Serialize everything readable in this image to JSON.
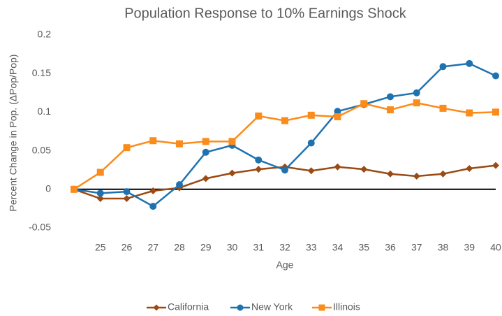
{
  "chart_data": {
    "type": "line",
    "title": "Population Response to 10% Earnings Shock",
    "x_label": "Age",
    "y_label": "Percent Change in  Pop. (ΔPop/Pop)",
    "x": [
      24,
      25,
      26,
      27,
      28,
      29,
      30,
      31,
      32,
      33,
      34,
      35,
      36,
      37,
      38,
      39,
      40
    ],
    "xlim": [
      24,
      40
    ],
    "xticks": [
      25,
      26,
      27,
      28,
      29,
      30,
      31,
      32,
      33,
      34,
      35,
      36,
      37,
      38,
      39,
      40
    ],
    "ylim": [
      -0.05,
      0.2
    ],
    "yticks": [
      -0.05,
      0,
      0.05,
      0.1,
      0.15,
      0.2
    ],
    "grid": false,
    "legend": "bottom",
    "series": [
      {
        "name": "California",
        "color": "#9a4a12",
        "marker": "diamond",
        "values": [
          0,
          -0.012,
          -0.012,
          -0.002,
          0.002,
          0.014,
          0.021,
          0.026,
          0.029,
          0.024,
          0.029,
          0.026,
          0.02,
          0.017,
          0.02,
          0.027,
          0.031
        ]
      },
      {
        "name": "New York",
        "color": "#1f72b0",
        "marker": "circle",
        "values": [
          0,
          -0.005,
          -0.003,
          -0.022,
          0.006,
          0.048,
          0.057,
          0.038,
          0.025,
          0.06,
          0.101,
          0.11,
          0.12,
          0.125,
          0.159,
          0.163,
          0.147
        ]
      },
      {
        "name": "Illinois",
        "color": "#fb8c1c",
        "marker": "square",
        "values": [
          0,
          0.022,
          0.054,
          0.063,
          0.059,
          0.062,
          0.062,
          0.095,
          0.089,
          0.096,
          0.094,
          0.111,
          0.103,
          0.112,
          0.105,
          0.099,
          0.1
        ]
      }
    ]
  }
}
